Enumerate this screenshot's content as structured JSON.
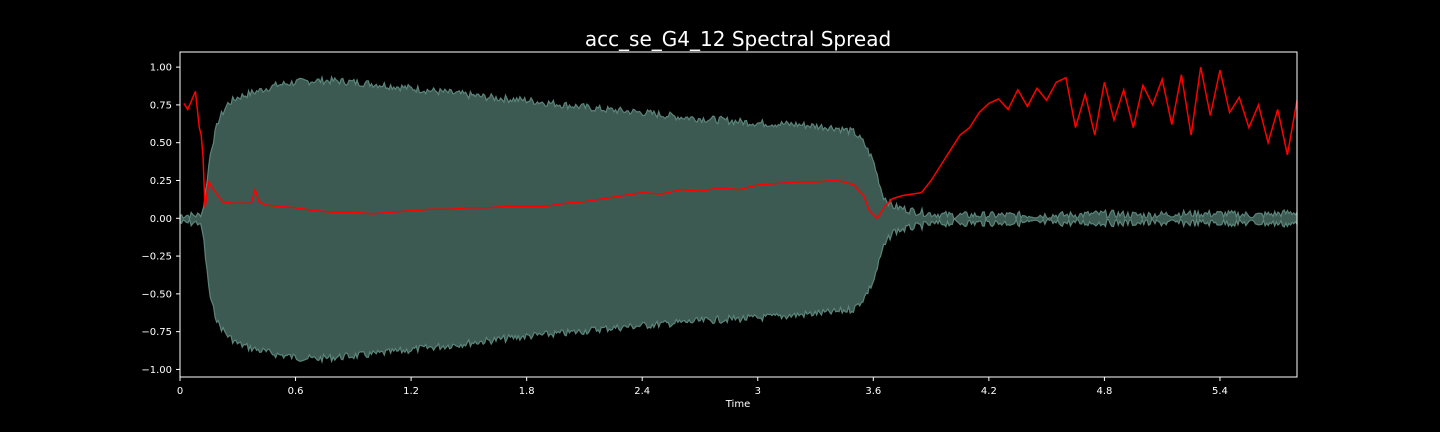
{
  "chart_data": {
    "type": "line",
    "title": "acc_se_G4_12 Spectral Spread",
    "xlabel": "Time",
    "ylabel": "",
    "xlim": [
      0,
      5.8
    ],
    "ylim": [
      -1.05,
      1.1
    ],
    "x_ticks": [
      0,
      0.6,
      1.2,
      1.8,
      2.4,
      3.0,
      3.6,
      4.2,
      4.8,
      5.4
    ],
    "x_tick_labels": [
      "0",
      "0.6",
      "1.2",
      "1.8",
      "2.4",
      "3",
      "3.6",
      "4.2",
      "4.8",
      "5.4"
    ],
    "y_ticks": [
      1.0,
      0.75,
      0.5,
      0.25,
      0.0,
      -0.25,
      -0.5,
      -0.75,
      -1.0
    ],
    "y_tick_labels": [
      "1.00",
      "0.75",
      "0.50",
      "0.25",
      "0.00",
      "−0.25",
      "−0.50",
      "−0.75",
      "−1.00"
    ],
    "colors": {
      "background": "#000000",
      "axes": "#ffffff",
      "waveform_fill": "#3d5a52",
      "waveform_edge": "#5b857b",
      "spread_line": "#ff0000"
    },
    "series": [
      {
        "name": "waveform envelope",
        "kind": "envelope",
        "x": [
          0,
          0.1,
          0.12,
          0.14,
          0.16,
          0.2,
          0.25,
          0.3,
          0.4,
          0.5,
          0.6,
          0.7,
          0.8,
          0.9,
          1.0,
          1.2,
          1.4,
          1.6,
          1.8,
          2.0,
          2.2,
          2.4,
          2.6,
          2.8,
          3.0,
          3.2,
          3.4,
          3.5,
          3.55,
          3.6,
          3.65,
          3.7,
          3.8,
          3.9,
          4.0,
          4.2,
          4.4,
          4.6,
          4.8,
          5.0,
          5.2,
          5.4,
          5.6,
          5.8
        ],
        "upper": [
          0.02,
          0.02,
          0.05,
          0.25,
          0.45,
          0.65,
          0.76,
          0.8,
          0.84,
          0.88,
          0.9,
          0.91,
          0.91,
          0.9,
          0.89,
          0.86,
          0.83,
          0.8,
          0.78,
          0.75,
          0.72,
          0.7,
          0.67,
          0.65,
          0.63,
          0.62,
          0.6,
          0.57,
          0.5,
          0.38,
          0.15,
          0.08,
          0.05,
          0.03,
          0.02,
          0.02,
          0.02,
          0.02,
          0.03,
          0.02,
          0.03,
          0.03,
          0.02,
          0.04
        ],
        "lower": [
          -0.03,
          -0.03,
          -0.1,
          -0.35,
          -0.55,
          -0.7,
          -0.78,
          -0.83,
          -0.87,
          -0.9,
          -0.92,
          -0.93,
          -0.92,
          -0.91,
          -0.9,
          -0.87,
          -0.84,
          -0.81,
          -0.78,
          -0.76,
          -0.73,
          -0.71,
          -0.69,
          -0.67,
          -0.66,
          -0.64,
          -0.62,
          -0.6,
          -0.53,
          -0.42,
          -0.2,
          -0.09,
          -0.06,
          -0.04,
          -0.03,
          -0.03,
          -0.03,
          -0.03,
          -0.03,
          -0.03,
          -0.03,
          -0.03,
          -0.03,
          -0.04
        ]
      },
      {
        "name": "spectral spread",
        "kind": "line",
        "x": [
          0.02,
          0.04,
          0.06,
          0.08,
          0.1,
          0.11,
          0.12,
          0.13,
          0.15,
          0.18,
          0.22,
          0.27,
          0.32,
          0.37,
          0.39,
          0.41,
          0.44,
          0.5,
          0.6,
          0.7,
          0.8,
          0.9,
          1.0,
          1.1,
          1.2,
          1.3,
          1.4,
          1.5,
          1.6,
          1.7,
          1.8,
          1.9,
          2.0,
          2.1,
          2.2,
          2.3,
          2.4,
          2.5,
          2.6,
          2.7,
          2.8,
          2.9,
          3.0,
          3.1,
          3.2,
          3.3,
          3.4,
          3.45,
          3.5,
          3.55,
          3.58,
          3.62,
          3.66,
          3.7,
          3.75,
          3.8,
          3.85,
          3.9,
          3.95,
          4.0,
          4.05,
          4.1,
          4.15,
          4.2,
          4.25,
          4.3,
          4.35,
          4.4,
          4.45,
          4.5,
          4.55,
          4.6,
          4.65,
          4.7,
          4.75,
          4.8,
          4.85,
          4.9,
          4.95,
          5.0,
          5.05,
          5.1,
          5.15,
          5.2,
          5.25,
          5.3,
          5.35,
          5.4,
          5.45,
          5.5,
          5.55,
          5.6,
          5.65,
          5.7,
          5.75,
          5.8
        ],
        "y": [
          0.76,
          0.72,
          0.78,
          0.84,
          0.6,
          0.55,
          0.4,
          0.07,
          0.24,
          0.18,
          0.11,
          0.1,
          0.1,
          0.1,
          0.19,
          0.11,
          0.09,
          0.08,
          0.07,
          0.05,
          0.04,
          0.04,
          0.03,
          0.04,
          0.05,
          0.06,
          0.06,
          0.07,
          0.07,
          0.08,
          0.08,
          0.08,
          0.1,
          0.11,
          0.13,
          0.15,
          0.17,
          0.16,
          0.19,
          0.18,
          0.2,
          0.19,
          0.22,
          0.23,
          0.24,
          0.24,
          0.25,
          0.24,
          0.22,
          0.15,
          0.05,
          0.0,
          0.08,
          0.13,
          0.15,
          0.16,
          0.17,
          0.25,
          0.35,
          0.45,
          0.55,
          0.6,
          0.7,
          0.76,
          0.79,
          0.72,
          0.85,
          0.74,
          0.86,
          0.78,
          0.9,
          0.93,
          0.6,
          0.82,
          0.55,
          0.9,
          0.65,
          0.85,
          0.6,
          0.88,
          0.75,
          0.92,
          0.62,
          0.95,
          0.55,
          1.0,
          0.68,
          0.98,
          0.7,
          0.8,
          0.6,
          0.75,
          0.5,
          0.72,
          0.42,
          0.78
        ]
      }
    ]
  }
}
